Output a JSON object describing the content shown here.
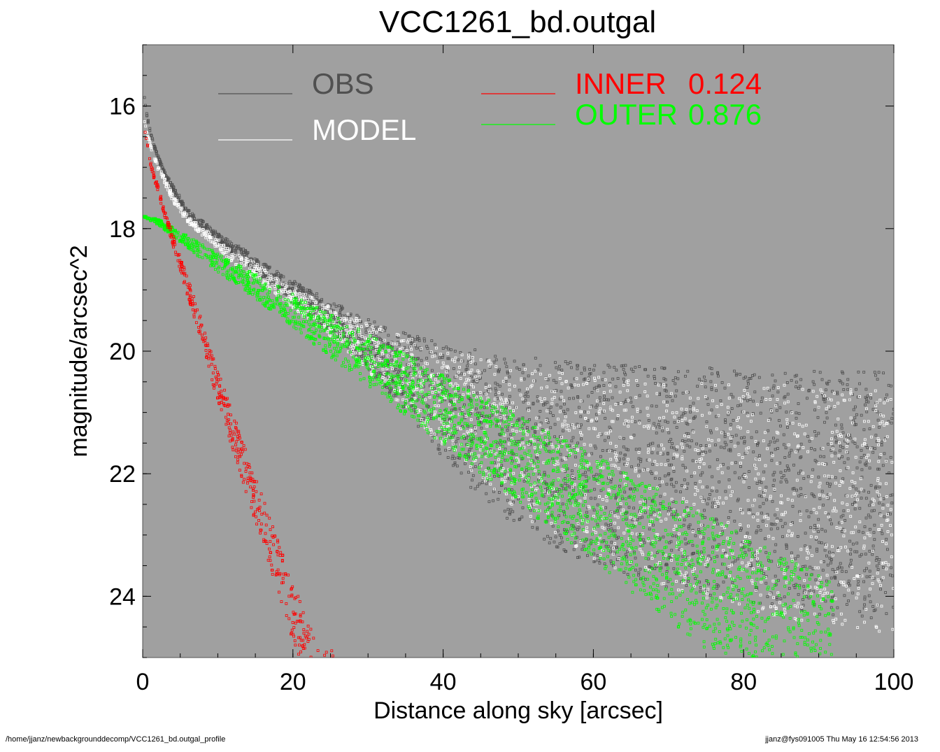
{
  "chart_data": {
    "type": "scatter",
    "title": "VCC1261_bd.outgal",
    "xlabel": "Distance along sky [arcsec]",
    "ylabel": "magnitude/arcsec^2",
    "xlim": [
      0,
      100
    ],
    "ylim": [
      25,
      15
    ],
    "y_inverted": true,
    "x_ticks": [
      "0",
      "20",
      "40",
      "60",
      "80",
      "100"
    ],
    "y_ticks": [
      "16",
      "18",
      "20",
      "22",
      "24"
    ],
    "grid": false,
    "legend_placement": "top",
    "background_color": "#a0a0a0",
    "legend": [
      {
        "label": "OBS",
        "value": "",
        "color": "#505050"
      },
      {
        "label": "MODEL",
        "value": "",
        "color": "#ffffff"
      },
      {
        "label": "INNER",
        "value": "0.124",
        "color": "#ff0000"
      },
      {
        "label": "OUTER",
        "value": "0.876",
        "color": "#00ff00"
      }
    ],
    "series": [
      {
        "name": "OBS",
        "color": "#505050",
        "x": [
          0.2,
          0.5,
          1,
          2,
          3,
          4,
          5,
          6,
          8,
          10,
          12,
          15,
          18,
          20,
          25,
          30,
          35,
          40,
          45,
          50,
          60,
          70,
          80,
          90,
          100
        ],
        "y": [
          15.8,
          16.1,
          16.4,
          16.8,
          17.1,
          17.3,
          17.5,
          17.7,
          17.9,
          18.1,
          18.25,
          18.5,
          18.75,
          18.9,
          19.25,
          19.6,
          19.9,
          20.15,
          20.35,
          20.5,
          20.7,
          20.8,
          20.85,
          20.9,
          20.95
        ],
        "y_spread": [
          0.05,
          0.05,
          0.06,
          0.08,
          0.1,
          0.1,
          0.12,
          0.12,
          0.15,
          0.2,
          0.2,
          0.25,
          0.3,
          0.35,
          0.5,
          0.8,
          1.3,
          1.9,
          2.4,
          2.8,
          3.3,
          3.6,
          3.8,
          4.0,
          4.1
        ]
      },
      {
        "name": "MODEL",
        "color": "#ffffff",
        "x": [
          0.2,
          0.5,
          1,
          2,
          3,
          4,
          5,
          6,
          8,
          10,
          12,
          15,
          18,
          20,
          25,
          30,
          40,
          50,
          60,
          70,
          80,
          90,
          100
        ],
        "y": [
          16.2,
          16.4,
          16.6,
          16.95,
          17.2,
          17.45,
          17.65,
          17.8,
          18.0,
          18.2,
          18.4,
          18.6,
          18.85,
          19.0,
          19.35,
          19.65,
          20.2,
          20.6,
          20.85,
          21.0,
          21.1,
          21.15,
          21.2
        ],
        "y_spread": [
          0.05,
          0.05,
          0.08,
          0.1,
          0.12,
          0.12,
          0.12,
          0.12,
          0.15,
          0.15,
          0.2,
          0.25,
          0.3,
          0.35,
          0.5,
          0.8,
          1.6,
          2.4,
          3.0,
          3.4,
          3.7,
          3.9,
          4.0
        ]
      },
      {
        "name": "INNER",
        "color": "#ff0000",
        "x": [
          0.2,
          1,
          2,
          3,
          4,
          5,
          6,
          8,
          10,
          12,
          14,
          16,
          18,
          20,
          22,
          24,
          26
        ],
        "y": [
          16.3,
          16.9,
          17.3,
          17.7,
          18.1,
          18.5,
          18.85,
          19.6,
          20.4,
          21.1,
          21.8,
          22.5,
          23.2,
          23.9,
          24.6,
          25.0,
          25.0
        ],
        "y_spread": [
          0.05,
          0.08,
          0.12,
          0.15,
          0.2,
          0.25,
          0.3,
          0.4,
          0.5,
          0.6,
          0.7,
          0.8,
          0.9,
          1.0,
          1.1,
          1.2,
          0.8
        ]
      },
      {
        "name": "OUTER",
        "color": "#00ff00",
        "x": [
          0.2,
          2,
          4,
          6,
          8,
          10,
          15,
          20,
          25,
          30,
          40,
          50,
          55,
          60,
          70,
          80,
          90,
          92
        ],
        "y": [
          17.8,
          17.85,
          18.0,
          18.15,
          18.3,
          18.45,
          18.8,
          19.15,
          19.5,
          19.85,
          20.55,
          21.25,
          21.6,
          21.95,
          22.65,
          23.35,
          24.05,
          24.2
        ],
        "y_spread": [
          0.02,
          0.1,
          0.15,
          0.2,
          0.25,
          0.3,
          0.4,
          0.55,
          0.7,
          0.85,
          1.15,
          1.45,
          1.6,
          1.75,
          2.05,
          2.35,
          2.65,
          2.7
        ]
      }
    ]
  },
  "footer": {
    "path": "/home/jjanz/newbackgrounddecomp/VCC1261_bd.outgal_profile",
    "stamp": "jjanz@fys091005  Thu May 16 12:54:56 2013"
  }
}
